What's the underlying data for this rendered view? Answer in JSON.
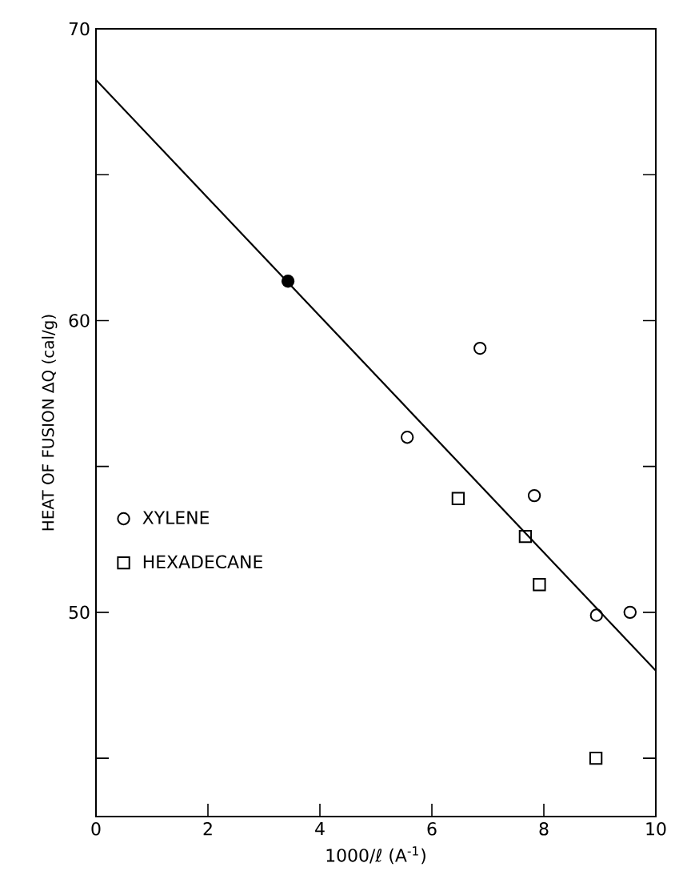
{
  "chart_data": {
    "type": "scatter",
    "xlabel": "1000/ℓ (A$^{-1}$)",
    "ylabel": "HEAT OF FUSION ΔQ (cal/g)",
    "xlim": [
      0,
      10
    ],
    "ylim": [
      43,
      70
    ],
    "xticks": [
      0,
      2,
      4,
      6,
      8,
      10
    ],
    "yticks": [
      {
        "value": 45,
        "label": null
      },
      50,
      {
        "value": 55,
        "label": null
      },
      60,
      {
        "value": 65,
        "label": null
      },
      70
    ],
    "legend": "left",
    "grid": false,
    "series": [
      {
        "name": "XYLENE",
        "color": "#000000",
        "marker": "circle",
        "x": [
          5.56,
          6.86,
          7.83,
          8.94,
          9.54
        ],
        "values": [
          56.0,
          59.05,
          54.0,
          49.9,
          50.0
        ]
      },
      {
        "name": "HEXADECANE",
        "color": "#000000",
        "marker": "square",
        "x": [
          6.47,
          7.67,
          7.92,
          8.93
        ],
        "values": [
          53.9,
          52.6,
          50.95,
          45.0
        ]
      },
      {
        "color": "#000000",
        "marker": "circle",
        "x": [
          3.43
        ],
        "values": [
          61.35
        ]
      },
      {
        "type": "line",
        "color": "#000000",
        "marker": "none",
        "line_style": "solid",
        "x": [
          0,
          10
        ],
        "values": [
          68.25,
          48.0
        ]
      }
    ]
  }
}
